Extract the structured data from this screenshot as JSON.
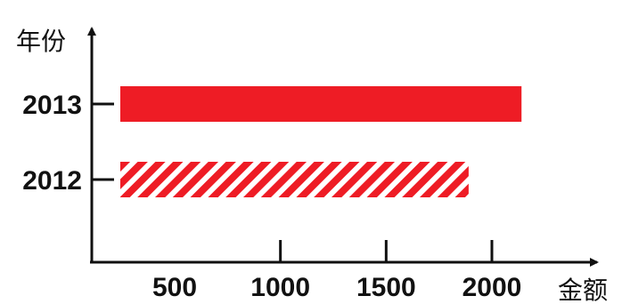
{
  "chart_data": {
    "type": "bar",
    "orientation": "horizontal",
    "categories": [
      "2013",
      "2012"
    ],
    "values": [
      2140,
      1890
    ],
    "bar_styles": [
      "solid",
      "hatched"
    ],
    "bar_color": "#ee1c25",
    "xlabel": "金额",
    "ylabel": "年份",
    "x_ticks": [
      "500",
      "1000",
      "1500",
      "2000"
    ],
    "xlim": [
      0,
      2250
    ],
    "grid": false
  }
}
